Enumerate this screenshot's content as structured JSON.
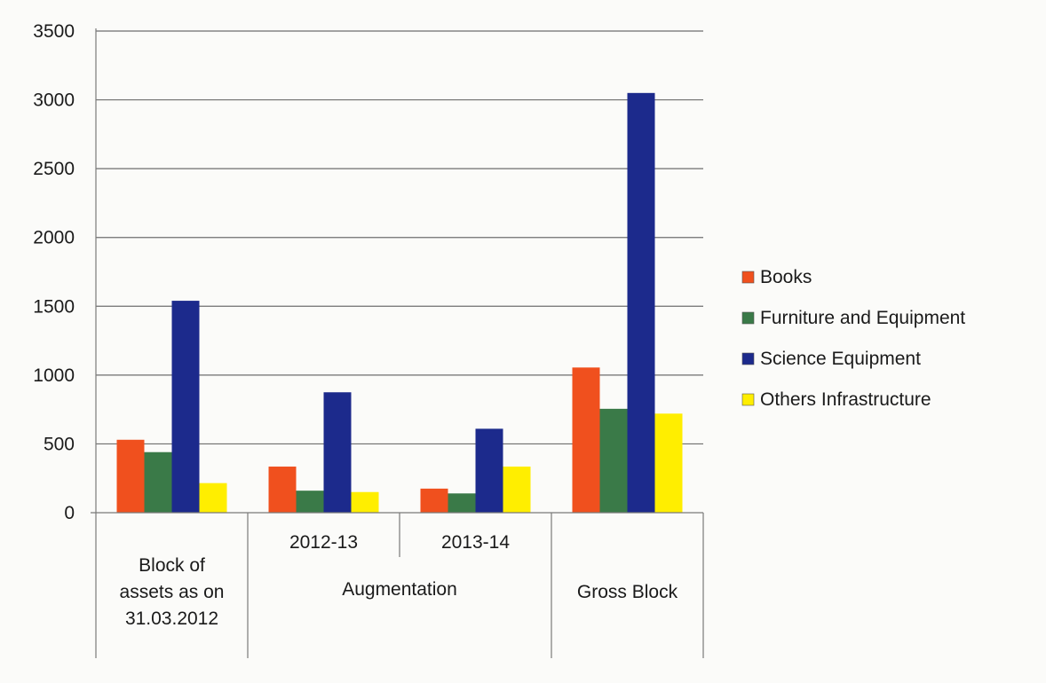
{
  "chart_data": {
    "type": "bar",
    "categories": [
      {
        "label": "Block of assets as on 31.03.2012",
        "lines": [
          "Block of",
          "assets as on",
          "31.03.2012"
        ],
        "sublabel": ""
      },
      {
        "label": "2012-13",
        "lines": [
          "2012-13"
        ],
        "sublabel": "Augmentation"
      },
      {
        "label": "2013-14",
        "lines": [
          "2013-14"
        ],
        "sublabel": "Augmentation"
      },
      {
        "label": "Gross Block",
        "lines": [
          "Gross Block"
        ],
        "sublabel": ""
      }
    ],
    "group_label": "Augmentation",
    "series": [
      {
        "name": "Books",
        "color": "#f0501e",
        "values": [
          530,
          335,
          175,
          1055
        ]
      },
      {
        "name": "Furniture and Equipment",
        "color": "#3a7a48",
        "values": [
          440,
          160,
          140,
          755
        ]
      },
      {
        "name": "Science Equipment",
        "color": "#1c2a8c",
        "values": [
          1540,
          875,
          610,
          3050
        ]
      },
      {
        "name": "Others Infrastructure",
        "color": "#ffee00",
        "values": [
          215,
          150,
          335,
          720
        ]
      }
    ],
    "ylim": [
      0,
      3500
    ],
    "yticks": [
      0,
      500,
      1000,
      1500,
      2000,
      2500,
      3000,
      3500
    ],
    "grid": true,
    "legend_position": "right"
  }
}
